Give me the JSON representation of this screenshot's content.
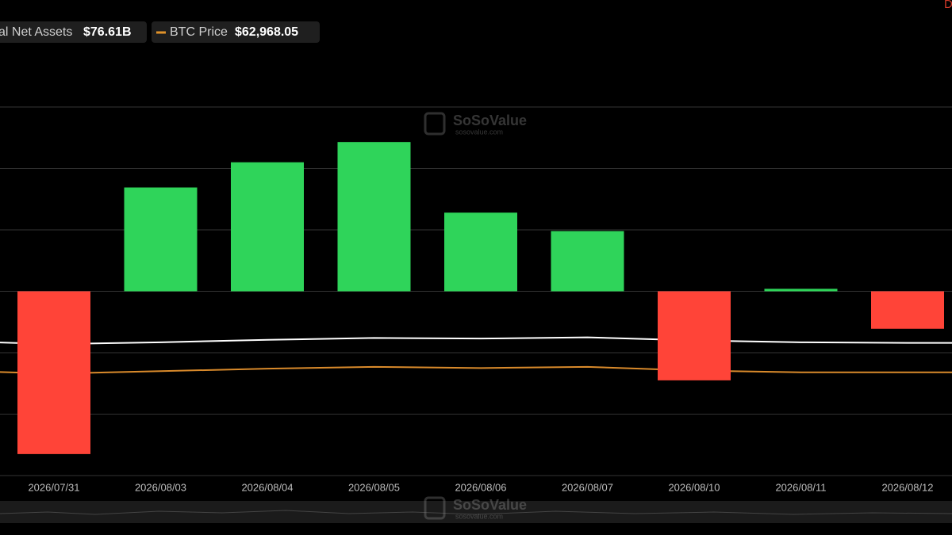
{
  "chart_data": {
    "type": "bar",
    "legend": [
      {
        "name": "al Net Assets",
        "value_label": "$76.61B",
        "color": "#ffffff"
      },
      {
        "name": "BTC Price",
        "value_label": "$62,968.05",
        "color": "#e0922a"
      }
    ],
    "watermark": {
      "title": "SoSoValue",
      "subtitle": "sosovalue.com"
    },
    "corner_label": "D",
    "categories": [
      "2026/07/31",
      "2026/08/03",
      "2026/08/04",
      "2026/08/05",
      "2026/08/06",
      "2026/08/07",
      "2026/08/10",
      "2026/08/11",
      "2026/08/12"
    ],
    "values": [
      -2.65,
      1.69,
      2.1,
      2.43,
      1.28,
      0.98,
      -1.45,
      0.04,
      -0.61
    ],
    "positive_color": "#2fd45a",
    "negative_color": "#ff4438",
    "lines": [
      {
        "color": "#ffffff",
        "values": [
          -0.86,
          -0.83,
          -0.79,
          -0.76,
          -0.77,
          -0.75,
          -0.8,
          -0.83,
          -0.84
        ]
      },
      {
        "color": "#d98a2b",
        "values": [
          -1.34,
          -1.3,
          -1.26,
          -1.23,
          -1.25,
          -1.23,
          -1.29,
          -1.32,
          -1.32
        ]
      }
    ],
    "ylim": [
      -3,
      3
    ],
    "gridlines": [
      -3,
      -2,
      -1,
      0,
      1,
      2,
      3
    ]
  }
}
